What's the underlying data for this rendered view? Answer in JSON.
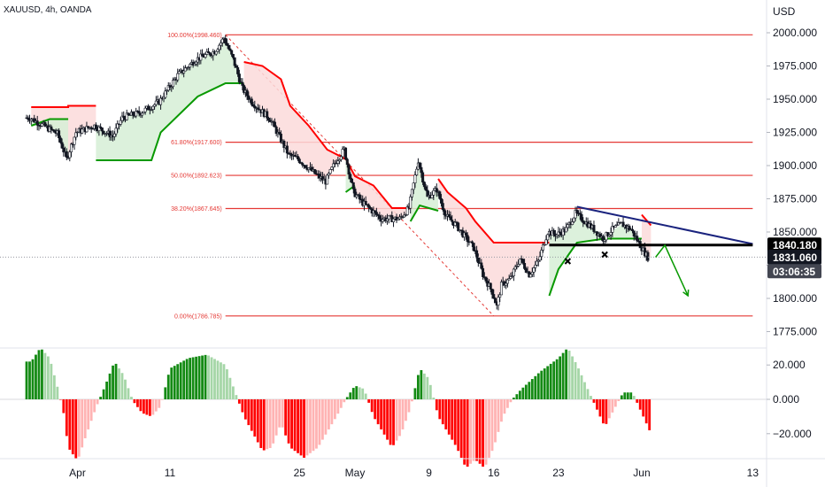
{
  "symbol": "XAUUSD, 4h, OANDA",
  "currency": "USD",
  "colors": {
    "up": "#089981",
    "down": "#f23645",
    "candle": "#131722",
    "st_up": "#089900",
    "st_down": "#ff0000",
    "fill_up": "#d6efd6",
    "fill_down": "#fbdada",
    "fib": "#e53935",
    "trend": "#1a237e",
    "support": "#000000",
    "osc_up_strong": "#138a13",
    "osc_up_weak": "#a5d6a7",
    "osc_dn_strong": "#ff0000",
    "osc_dn_weak": "#ffb3b3",
    "axis_tag": "#131722"
  },
  "chart_data": [
    {
      "type": "candlestick",
      "title": "XAUUSD, 4h, OANDA",
      "y_unit": "USD",
      "x_tick_labels": [
        "Apr",
        "11",
        "25",
        "May",
        "9",
        "16",
        "23",
        "Jun",
        "13"
      ],
      "x_tick_days": [
        1,
        11,
        25,
        31,
        39,
        46,
        53,
        62,
        74
      ],
      "y_ticks": [
        2000.0,
        1975.0,
        1950.0,
        1925.0,
        1900.0,
        1875.0,
        1850.0,
        1825.0,
        1800.0,
        1775.0
      ],
      "y_tick_labels": [
        "2000.000",
        "1975.000",
        "1950.000",
        "1925.000",
        "1900.000",
        "1875.000",
        "1850.000",
        "1825.000",
        "1800.000",
        "1775.000"
      ],
      "ylim": [
        1762,
        2020
      ],
      "price_path": [
        {
          "day": -4,
          "price": 1936
        },
        {
          "day": -2,
          "price": 1928
        },
        {
          "day": -1,
          "price": 1924
        },
        {
          "day": 0,
          "price": 1905
        },
        {
          "day": 1,
          "price": 1925
        },
        {
          "day": 3,
          "price": 1930
        },
        {
          "day": 5,
          "price": 1922
        },
        {
          "day": 6,
          "price": 1936
        },
        {
          "day": 8,
          "price": 1940
        },
        {
          "day": 10,
          "price": 1948
        },
        {
          "day": 12,
          "price": 1968
        },
        {
          "day": 14,
          "price": 1980
        },
        {
          "day": 16,
          "price": 1986
        },
        {
          "day": 17,
          "price": 1996
        },
        {
          "day": 18,
          "price": 1980
        },
        {
          "day": 19,
          "price": 1958
        },
        {
          "day": 20,
          "price": 1948
        },
        {
          "day": 22,
          "price": 1935
        },
        {
          "day": 24,
          "price": 1908
        },
        {
          "day": 25,
          "price": 1905
        },
        {
          "day": 27,
          "price": 1893
        },
        {
          "day": 28,
          "price": 1888
        },
        {
          "day": 29,
          "price": 1902
        },
        {
          "day": 30,
          "price": 1912
        },
        {
          "day": 31,
          "price": 1880
        },
        {
          "day": 32,
          "price": 1872
        },
        {
          "day": 34,
          "price": 1860
        },
        {
          "day": 36,
          "price": 1860
        },
        {
          "day": 37,
          "price": 1868
        },
        {
          "day": 38,
          "price": 1904
        },
        {
          "day": 39,
          "price": 1876
        },
        {
          "day": 40,
          "price": 1882
        },
        {
          "day": 41,
          "price": 1862
        },
        {
          "day": 42,
          "price": 1856
        },
        {
          "day": 44,
          "price": 1838
        },
        {
          "day": 45,
          "price": 1818
        },
        {
          "day": 46,
          "price": 1805
        },
        {
          "day": 46.5,
          "price": 1794
        },
        {
          "day": 47,
          "price": 1810
        },
        {
          "day": 48,
          "price": 1815
        },
        {
          "day": 49,
          "price": 1830
        },
        {
          "day": 50,
          "price": 1818
        },
        {
          "day": 51,
          "price": 1828
        },
        {
          "day": 52,
          "price": 1850
        },
        {
          "day": 53,
          "price": 1848
        },
        {
          "day": 54,
          "price": 1852
        },
        {
          "day": 55,
          "price": 1864
        },
        {
          "day": 56,
          "price": 1858
        },
        {
          "day": 57,
          "price": 1852
        },
        {
          "day": 58,
          "price": 1845
        },
        {
          "day": 59,
          "price": 1852
        },
        {
          "day": 60,
          "price": 1856
        },
        {
          "day": 61,
          "price": 1852
        },
        {
          "day": 62,
          "price": 1840
        },
        {
          "day": 62.8,
          "price": 1831
        }
      ],
      "supertrend": [
        {
          "side": "down",
          "points": [
            [
              -4,
              1944
            ],
            [
              0,
              1944
            ],
            [
              0,
              1945
            ],
            [
              3,
              1945
            ]
          ]
        },
        {
          "side": "up",
          "points": [
            [
              -4,
              1930
            ],
            [
              -2,
              1935
            ],
            [
              0,
              1935
            ]
          ]
        },
        {
          "side": "up",
          "points": [
            [
              3,
              1904
            ],
            [
              9,
              1904
            ],
            [
              10,
              1925
            ],
            [
              14,
              1952
            ],
            [
              17,
              1962
            ],
            [
              19,
              1962
            ]
          ]
        },
        {
          "side": "down",
          "points": [
            [
              19,
              1978
            ],
            [
              21,
              1975
            ],
            [
              23,
              1965
            ],
            [
              24,
              1945
            ],
            [
              26,
              1930
            ],
            [
              28,
              1912
            ],
            [
              30,
              1905
            ],
            [
              31,
              1892
            ],
            [
              33,
              1885
            ],
            [
              35,
              1868
            ],
            [
              37,
              1868
            ]
          ]
        },
        {
          "side": "up",
          "points": [
            [
              30,
              1880
            ],
            [
              31,
              1885
            ]
          ]
        },
        {
          "side": "up",
          "points": [
            [
              37,
              1858
            ],
            [
              38,
              1870
            ],
            [
              40,
              1866
            ]
          ]
        },
        {
          "side": "down",
          "points": [
            [
              40,
              1890
            ],
            [
              41,
              1880
            ],
            [
              43,
              1868
            ],
            [
              44,
              1858
            ],
            [
              46,
              1842
            ],
            [
              52,
              1842
            ]
          ]
        },
        {
          "side": "up",
          "points": [
            [
              52,
              1802
            ],
            [
              53,
              1822
            ],
            [
              54,
              1832
            ],
            [
              55,
              1842
            ],
            [
              58,
              1845
            ],
            [
              62,
              1845
            ]
          ]
        },
        {
          "side": "down",
          "points": [
            [
              62,
              1863
            ],
            [
              63,
              1855
            ]
          ]
        }
      ],
      "fibonacci": [
        {
          "ratio_label": "100.00%(1998.460)",
          "price": 1998.46
        },
        {
          "ratio_label": "61.80%(1917.600)",
          "price": 1917.6
        },
        {
          "ratio_label": "50.00%(1892.623)",
          "price": 1892.623
        },
        {
          "ratio_label": "38.20%(1867.645)",
          "price": 1867.645
        },
        {
          "ratio_label": "0.00%(1786.785)",
          "price": 1786.785
        }
      ],
      "fib_range_days": [
        17,
        74
      ],
      "fib_diagonal": [
        [
          17,
          1998.46
        ],
        [
          46,
          1786.785
        ]
      ],
      "trendline": [
        [
          55,
          1869
        ],
        [
          74,
          1841
        ]
      ],
      "support_line": {
        "price": 1840.18,
        "from_day": 52,
        "to_day": 74
      },
      "markers_x": [
        {
          "day": 54,
          "price": 1828
        },
        {
          "day": 58,
          "price": 1833
        }
      ],
      "forecast_arrow": [
        [
          63.5,
          1831
        ],
        [
          64.5,
          1840
        ],
        [
          67,
          1802
        ]
      ],
      "tags": [
        {
          "label": "1840.180",
          "price": 1840.18,
          "style": "black"
        },
        {
          "label": "1831.060",
          "price": 1831.06,
          "style": "dark"
        },
        {
          "label": "03:06:35",
          "price": 1820.5,
          "style": "dark-small"
        }
      ],
      "last_price": 1831.06
    },
    {
      "type": "bar",
      "title": "",
      "y_ticks": [
        20.0,
        0.0,
        -20.0
      ],
      "y_tick_labels": [
        "20.000",
        "0.000",
        "−20.000"
      ],
      "ylim": [
        -42,
        34
      ],
      "histogram_path": [
        {
          "day": -4,
          "v": 22
        },
        {
          "day": -3,
          "v": 30
        },
        {
          "day": -2,
          "v": 24
        },
        {
          "day": -1,
          "v": 4
        },
        {
          "day": -0.5,
          "v": -8
        },
        {
          "day": 0,
          "v": -28
        },
        {
          "day": 1,
          "v": -36
        },
        {
          "day": 2,
          "v": -20
        },
        {
          "day": 3,
          "v": -5
        },
        {
          "day": 4,
          "v": 8
        },
        {
          "day": 5,
          "v": 22
        },
        {
          "day": 6,
          "v": 14
        },
        {
          "day": 7,
          "v": -1
        },
        {
          "day": 8,
          "v": -8
        },
        {
          "day": 9,
          "v": -10
        },
        {
          "day": 10,
          "v": -4
        },
        {
          "day": 11,
          "v": 18
        },
        {
          "day": 13,
          "v": 24
        },
        {
          "day": 15,
          "v": 26
        },
        {
          "day": 17,
          "v": 20
        },
        {
          "day": 18,
          "v": 5
        },
        {
          "day": 19,
          "v": -10
        },
        {
          "day": 21,
          "v": -30
        },
        {
          "day": 22,
          "v": -28
        },
        {
          "day": 23,
          "v": -14
        },
        {
          "day": 24,
          "v": -28
        },
        {
          "day": 25.5,
          "v": -34
        },
        {
          "day": 27,
          "v": -28
        },
        {
          "day": 29,
          "v": -10
        },
        {
          "day": 30,
          "v": 0
        },
        {
          "day": 31,
          "v": 8
        },
        {
          "day": 32,
          "v": 6
        },
        {
          "day": 33,
          "v": -10
        },
        {
          "day": 35,
          "v": -28
        },
        {
          "day": 36,
          "v": -20
        },
        {
          "day": 37,
          "v": -5
        },
        {
          "day": 38,
          "v": 18
        },
        {
          "day": 39,
          "v": 12
        },
        {
          "day": 40,
          "v": -10
        },
        {
          "day": 42,
          "v": -28
        },
        {
          "day": 43,
          "v": -40
        },
        {
          "day": 44,
          "v": -35
        },
        {
          "day": 45,
          "v": -40
        },
        {
          "day": 46,
          "v": -28
        },
        {
          "day": 47,
          "v": -10
        },
        {
          "day": 48,
          "v": 0
        },
        {
          "day": 49,
          "v": 6
        },
        {
          "day": 51,
          "v": 16
        },
        {
          "day": 53,
          "v": 24
        },
        {
          "day": 54,
          "v": 30
        },
        {
          "day": 55,
          "v": 20
        },
        {
          "day": 56,
          "v": 8
        },
        {
          "day": 57,
          "v": -4
        },
        {
          "day": 58,
          "v": -16
        },
        {
          "day": 59,
          "v": -6
        },
        {
          "day": 60,
          "v": 4
        },
        {
          "day": 61,
          "v": 4
        },
        {
          "day": 62,
          "v": -8
        },
        {
          "day": 63,
          "v": -20
        }
      ]
    }
  ]
}
